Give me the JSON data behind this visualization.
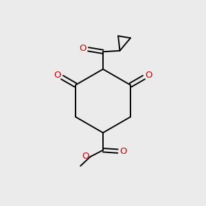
{
  "bg_color": "#EBEBEB",
  "bond_color": "#000000",
  "oxygen_color": "#CC0000",
  "line_width": 1.4,
  "figsize": [
    3.0,
    3.0
  ],
  "dpi": 100,
  "xlim": [
    0,
    10
  ],
  "ylim": [
    0,
    10
  ]
}
